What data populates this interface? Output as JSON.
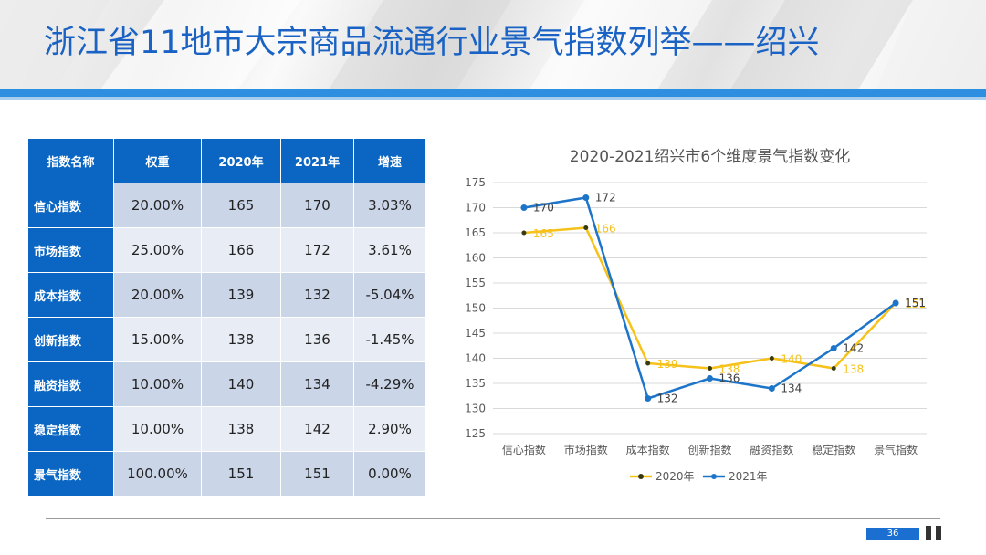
{
  "title": "浙江省11地市大宗商品流通行业景气指数列举——绍兴",
  "table": {
    "headers": [
      "指数名称",
      "权重",
      "2020年",
      "2021年",
      "增速"
    ],
    "rows": [
      [
        "信心指数",
        "20.00%",
        "165",
        "170",
        "3.03%"
      ],
      [
        "市场指数",
        "25.00%",
        "166",
        "172",
        "3.61%"
      ],
      [
        "成本指数",
        "20.00%",
        "139",
        "132",
        "-5.04%"
      ],
      [
        "创新指数",
        "15.00%",
        "138",
        "136",
        "-1.45%"
      ],
      [
        "融资指数",
        "10.00%",
        "140",
        "134",
        "-4.29%"
      ],
      [
        "稳定指数",
        "10.00%",
        "138",
        "142",
        "2.90%"
      ],
      [
        "景气指数",
        "100.00%",
        "151",
        "151",
        "0.00%"
      ]
    ]
  },
  "chart_data": {
    "type": "line",
    "title": "2020-2021绍兴市6个维度景气指数变化",
    "categories": [
      "信心指数",
      "市场指数",
      "成本指数",
      "创新指数",
      "融资指数",
      "稳定指数",
      "景气指数"
    ],
    "series": [
      {
        "name": "2020年",
        "values": [
          165,
          166,
          139,
          138,
          140,
          138,
          151
        ],
        "color": "#f6c21a"
      },
      {
        "name": "2021年",
        "values": [
          170,
          172,
          132,
          136,
          134,
          142,
          151
        ],
        "color": "#1c75c8"
      }
    ],
    "ylim": [
      125,
      175
    ],
    "yticks": [
      "125",
      "130",
      "135",
      "140",
      "145",
      "150",
      "155",
      "160",
      "165",
      "170",
      "175"
    ],
    "grid": true,
    "legend": "bottom"
  },
  "footer": {
    "page_number": "36"
  }
}
